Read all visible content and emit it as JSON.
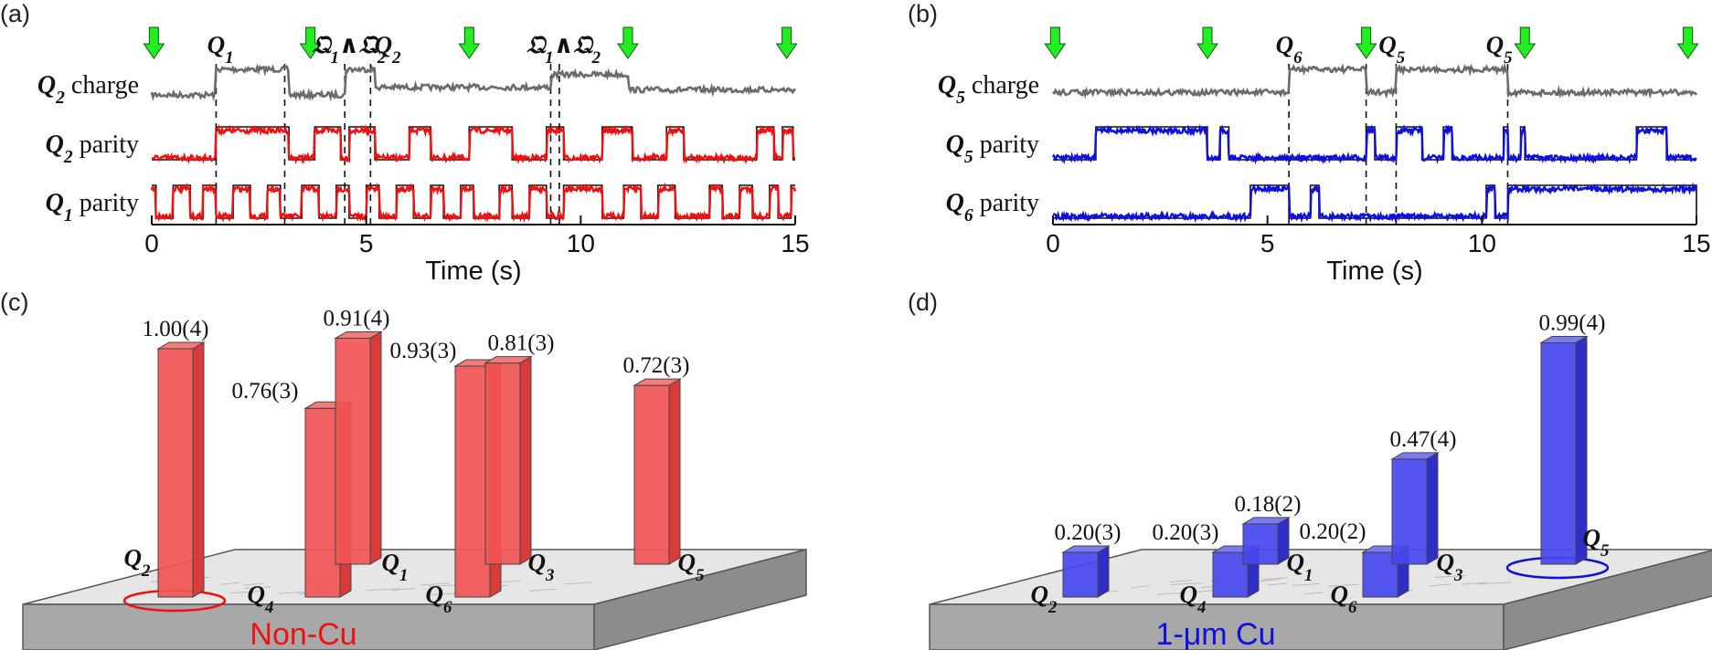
{
  "panels": {
    "a": "(a)",
    "b": "(b)",
    "c": "(c)",
    "d": "(d)"
  },
  "colors": {
    "charge": "#6b6b6b",
    "red": "#ee1111",
    "blue": "#1010dd",
    "arrow": "#22ee22",
    "bar_red": "#f25555",
    "bar_blue": "#4747ee",
    "plate_top": "#e6e6e6",
    "plate_side": "#a8a8a8"
  },
  "chart_data": [
    {
      "type": "line",
      "panel": "(a)",
      "xlabel": "Time (s)",
      "xlim": [
        0,
        15
      ],
      "xticks": [
        "0",
        "5",
        "10",
        "15"
      ],
      "row_labels": [
        {
          "q": "Q",
          "sub": "2",
          "text": " charge"
        },
        {
          "q": "Q",
          "sub": "2",
          "text": " parity"
        },
        {
          "q": "Q",
          "sub": "1",
          "text": " parity"
        }
      ],
      "charge_jumps": [
        {
          "t": 1.5,
          "label_q": "Q",
          "label_sub": "1"
        },
        {
          "t": 3.1,
          "label_q": "",
          "label_sub": ""
        },
        {
          "t": 4.6,
          "label_q": "𝔔",
          "label_sub": "1"
        },
        {
          "t": 5.2,
          "label_q": "Q",
          "label_sub": "2"
        },
        {
          "t": 9.3,
          "label_q": "𝔔",
          "label_sub": "1"
        },
        {
          "t": 9.5,
          "label_q": "",
          "label_sub": ""
        }
      ],
      "top_labels": [
        {
          "t": 1.6,
          "text": "Q",
          "sub": "1"
        },
        {
          "t": 4.6,
          "text": "𝔔",
          "sub": "1",
          "text2": "∧𝔔",
          "sub2": "2"
        },
        {
          "t": 5.5,
          "text": "Q",
          "sub": "2"
        },
        {
          "t": 9.6,
          "text": "𝔔",
          "sub": "1",
          "text2": "∧𝔔",
          "sub2": "2"
        }
      ],
      "arrows_t": [
        0.05,
        3.7,
        7.4,
        11.1,
        14.8
      ],
      "charge_levels": [
        [
          0,
          0
        ],
        [
          1.5,
          1
        ],
        [
          3.2,
          0
        ],
        [
          4.5,
          1
        ],
        [
          5.2,
          0.3
        ],
        [
          9.3,
          0.8
        ],
        [
          11.1,
          0.2
        ]
      ],
      "q2_parity_switches": [
        1.5,
        3.2,
        3.8,
        4.4,
        4.6,
        5.2,
        6.0,
        6.5,
        7.4,
        8.4,
        9.2,
        9.6,
        10.5,
        11.2,
        12.0,
        12.4,
        14.1,
        14.5,
        14.7,
        14.95
      ],
      "q1_parity_switches": [
        0.1,
        0.5,
        0.9,
        1.2,
        1.5,
        1.9,
        2.3,
        2.7,
        3.0,
        3.5,
        3.9,
        4.3,
        4.6,
        5.0,
        5.3,
        5.7,
        6.1,
        6.5,
        6.8,
        7.2,
        7.5,
        8.1,
        8.4,
        8.8,
        9.2,
        9.6,
        10.5,
        11.0,
        11.4,
        11.8,
        12.2,
        13.0,
        13.3,
        13.7,
        14.0,
        14.4,
        14.6,
        14.9
      ]
    },
    {
      "type": "line",
      "panel": "(b)",
      "xlabel": "Time (s)",
      "xlim": [
        0,
        15
      ],
      "xticks": [
        "0",
        "5",
        "10",
        "15"
      ],
      "row_labels": [
        {
          "q": "Q",
          "sub": "5",
          "text": " charge"
        },
        {
          "q": "Q",
          "sub": "5",
          "text": " parity"
        },
        {
          "q": "Q",
          "sub": "6",
          "text": " parity"
        }
      ],
      "top_labels": [
        {
          "t": 5.5,
          "text": "Q",
          "sub": "6"
        },
        {
          "t": 7.9,
          "text": "Q",
          "sub": "5"
        },
        {
          "t": 10.4,
          "text": "Q",
          "sub": "5"
        }
      ],
      "dashed_t": [
        5.5,
        7.3,
        8.0,
        10.6
      ],
      "arrows_t": [
        0.05,
        3.6,
        7.3,
        11.0,
        14.8
      ],
      "charge_levels": [
        [
          0,
          0.1
        ],
        [
          5.5,
          1
        ],
        [
          7.3,
          0.1
        ],
        [
          8.0,
          1
        ],
        [
          10.6,
          0.1
        ]
      ],
      "q5_parity_switches": [
        1.0,
        3.6,
        3.9,
        4.1,
        7.3,
        7.5,
        8.0,
        8.6,
        9.1,
        9.3,
        10.5,
        10.6,
        10.9,
        11.0,
        13.6,
        14.3
      ],
      "q6_parity_switches": [
        4.6,
        5.5,
        6.0,
        6.2,
        10.1,
        10.3,
        10.6,
        15
      ]
    },
    {
      "type": "bar",
      "panel": "(c)",
      "plate_label": "Non-Cu",
      "bars": [
        {
          "qubit": "Q",
          "sub": "2",
          "value": 1.0,
          "label": "1.00(4)"
        },
        {
          "qubit": "Q",
          "sub": "4",
          "value": 0.76,
          "label": "0.76(3)"
        },
        {
          "qubit": "Q",
          "sub": "1",
          "value": 0.91,
          "label": "0.91(4)"
        },
        {
          "qubit": "Q",
          "sub": "6",
          "value": 0.93,
          "label": "0.93(3)"
        },
        {
          "qubit": "Q",
          "sub": "3",
          "value": 0.81,
          "label": "0.81(3)"
        },
        {
          "qubit": "Q",
          "sub": "5",
          "value": 0.72,
          "label": "0.72(3)"
        }
      ]
    },
    {
      "type": "bar",
      "panel": "(d)",
      "plate_label": "1-μm Cu",
      "bars": [
        {
          "qubit": "Q",
          "sub": "2",
          "value": 0.2,
          "label": "0.20(3)"
        },
        {
          "qubit": "Q",
          "sub": "4",
          "value": 0.2,
          "label": "0.20(3)"
        },
        {
          "qubit": "Q",
          "sub": "1",
          "value": 0.18,
          "label": "0.18(2)"
        },
        {
          "qubit": "Q",
          "sub": "6",
          "value": 0.2,
          "label": "0.20(2)"
        },
        {
          "qubit": "Q",
          "sub": "3",
          "value": 0.47,
          "label": "0.47(4)"
        },
        {
          "qubit": "Q",
          "sub": "5",
          "value": 0.99,
          "label": "0.99(4)"
        }
      ]
    }
  ]
}
